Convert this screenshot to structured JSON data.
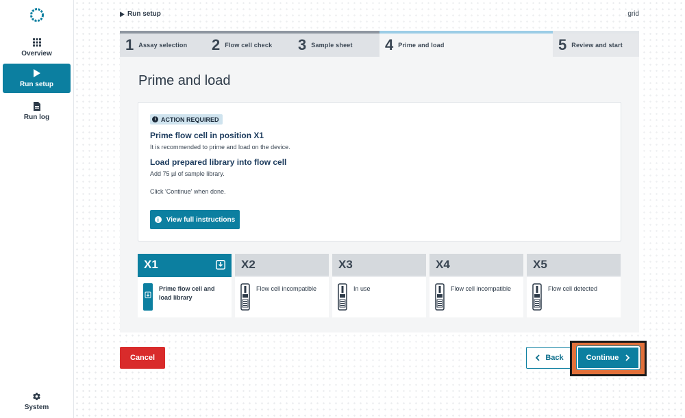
{
  "sidebar": {
    "items": [
      {
        "label": "Overview",
        "icon": "grid-icon"
      },
      {
        "label": "Run setup",
        "icon": "play-icon"
      },
      {
        "label": "Run log",
        "icon": "document-icon"
      }
    ],
    "system_label": "System"
  },
  "header": {
    "breadcrumb": "Run setup",
    "host": "grid"
  },
  "stepper": {
    "steps": [
      {
        "num": "1",
        "label": "Assay selection"
      },
      {
        "num": "2",
        "label": "Flow cell check"
      },
      {
        "num": "3",
        "label": "Sample sheet"
      },
      {
        "num": "4",
        "label": "Prime and load"
      },
      {
        "num": "5",
        "label": "Review and start"
      }
    ],
    "active_step": 4
  },
  "main": {
    "title": "Prime and load",
    "card": {
      "badge": "ACTION REQUIRED",
      "heading1": "Prime flow cell in position X1",
      "text1": "It is recommended to prime and load on the device.",
      "heading2": "Load prepared library into flow cell",
      "text2": "Add 75 µl of sample library.",
      "text3": "Click 'Continue' when done.",
      "instructions_button": "View full instructions"
    },
    "positions": [
      {
        "id": "X1",
        "status": "Prime flow cell and load library",
        "active": true
      },
      {
        "id": "X2",
        "status": "Flow cell incompatible"
      },
      {
        "id": "X3",
        "status": "In use"
      },
      {
        "id": "X4",
        "status": "Flow cell incompatible"
      },
      {
        "id": "X5",
        "status": "Flow cell detected"
      }
    ]
  },
  "footer": {
    "cancel_label": "Cancel",
    "back_label": "Back",
    "continue_label": "Continue"
  },
  "colors": {
    "accent": "#0c7fa0",
    "danger": "#d92b2b",
    "highlight": "#e2703a"
  }
}
